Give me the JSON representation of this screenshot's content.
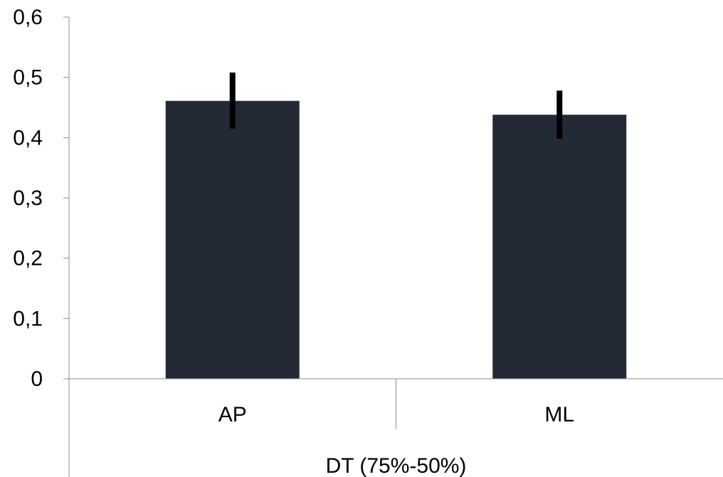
{
  "chart_data": {
    "type": "bar",
    "categories": [
      "AP",
      "ML"
    ],
    "values": [
      0.461,
      0.438
    ],
    "errors": [
      {
        "low": 0.415,
        "high": 0.508
      },
      {
        "low": 0.398,
        "high": 0.478
      }
    ],
    "group_label": "DT (75%-50%)",
    "yticks": [
      "0",
      "0,1",
      "0,2",
      "0,3",
      "0,4",
      "0,5",
      "0,6"
    ],
    "ylim": [
      0,
      0.6
    ],
    "grid": false,
    "bar_color": "#242a35",
    "error_color": "#000000",
    "axis_color": "#8c8c8c"
  }
}
